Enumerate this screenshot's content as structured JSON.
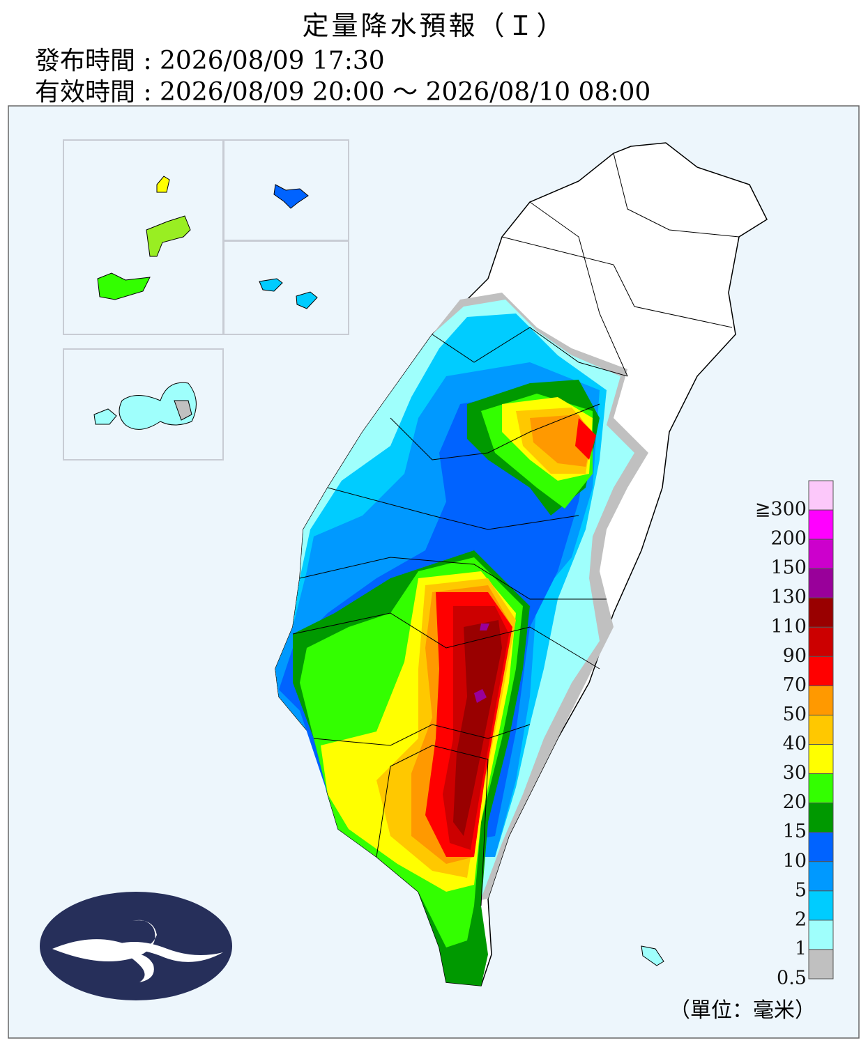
{
  "header": {
    "title": "定量降水預報（Ｉ）",
    "issued": "發布時間 : 2026/08/09 17:30",
    "valid": "有效時間 : 2026/08/09 20:00 ～ 2026/08/10 08:00"
  },
  "legend": {
    "levels": [
      {
        "label": "≧300",
        "color": "#fcc8fa"
      },
      {
        "label": "200",
        "color": "#ff00ff"
      },
      {
        "label": "150",
        "color": "#cc00cc"
      },
      {
        "label": "130",
        "color": "#99009a"
      },
      {
        "label": "110",
        "color": "#990000"
      },
      {
        "label": "90",
        "color": "#cc0000"
      },
      {
        "label": "70",
        "color": "#ff0000"
      },
      {
        "label": "50",
        "color": "#ff9900"
      },
      {
        "label": "40",
        "color": "#ffc800"
      },
      {
        "label": "30",
        "color": "#ffff00"
      },
      {
        "label": "20",
        "color": "#33ff00"
      },
      {
        "label": "15",
        "color": "#009900"
      },
      {
        "label": "10",
        "color": "#0063ff"
      },
      {
        "label": "5",
        "color": "#0099ff"
      },
      {
        "label": "2",
        "color": "#00ccff"
      },
      {
        "label": "1",
        "color": "#9ffffc"
      },
      {
        "label": "0.5",
        "color": "#c0c0c0"
      }
    ],
    "unit": "（單位：毫米）"
  }
}
